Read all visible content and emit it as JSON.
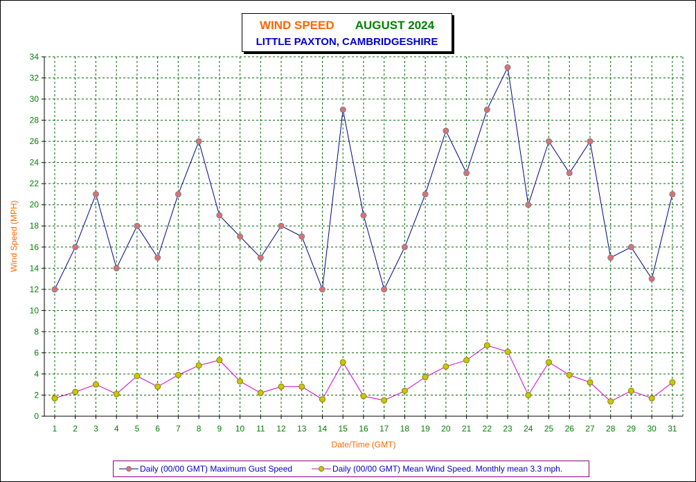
{
  "chart_data": {
    "type": "line",
    "title": "WIND SPEED",
    "title_date": "AUGUST 2024",
    "subtitle": "LITTLE PAXTON, CAMBRIDGESHIRE",
    "xlabel": "Date/Time (GMT)",
    "ylabel": "Wind Speed (MPH)",
    "ylim": [
      0,
      34
    ],
    "yticks": [
      0,
      2,
      4,
      6,
      8,
      10,
      12,
      14,
      16,
      18,
      20,
      22,
      24,
      26,
      28,
      30,
      32,
      34
    ],
    "x": [
      1,
      2,
      3,
      4,
      5,
      6,
      7,
      8,
      9,
      10,
      11,
      12,
      13,
      14,
      15,
      16,
      17,
      18,
      19,
      20,
      21,
      22,
      23,
      24,
      25,
      26,
      27,
      28,
      29,
      30,
      31
    ],
    "grid": true,
    "legend_position": "bottom",
    "series": [
      {
        "name": "Daily (00/00 GMT) Maximum Gust Speed",
        "color": "#000080",
        "marker_color": "#e07070",
        "values": [
          12,
          16,
          21,
          14,
          18,
          15,
          21,
          26,
          19,
          17,
          15,
          18,
          17,
          12,
          29,
          19,
          12,
          16,
          21,
          27,
          23,
          29,
          33,
          20,
          26,
          23,
          26,
          15,
          16,
          13,
          21
        ]
      },
      {
        "name": "Daily (00/00 GMT) Mean Wind Speed. Monthly mean 3.3 mph.",
        "color": "#cc00cc",
        "marker_color": "#c8c800",
        "values": [
          1.7,
          2.3,
          3.0,
          2.1,
          3.8,
          2.8,
          3.9,
          4.8,
          5.3,
          3.3,
          2.2,
          2.8,
          2.8,
          1.6,
          5.1,
          1.9,
          1.5,
          2.4,
          3.7,
          4.7,
          5.3,
          6.7,
          6.1,
          2.0,
          5.1,
          3.9,
          3.2,
          1.4,
          2.4,
          1.7,
          3.2
        ]
      }
    ]
  }
}
